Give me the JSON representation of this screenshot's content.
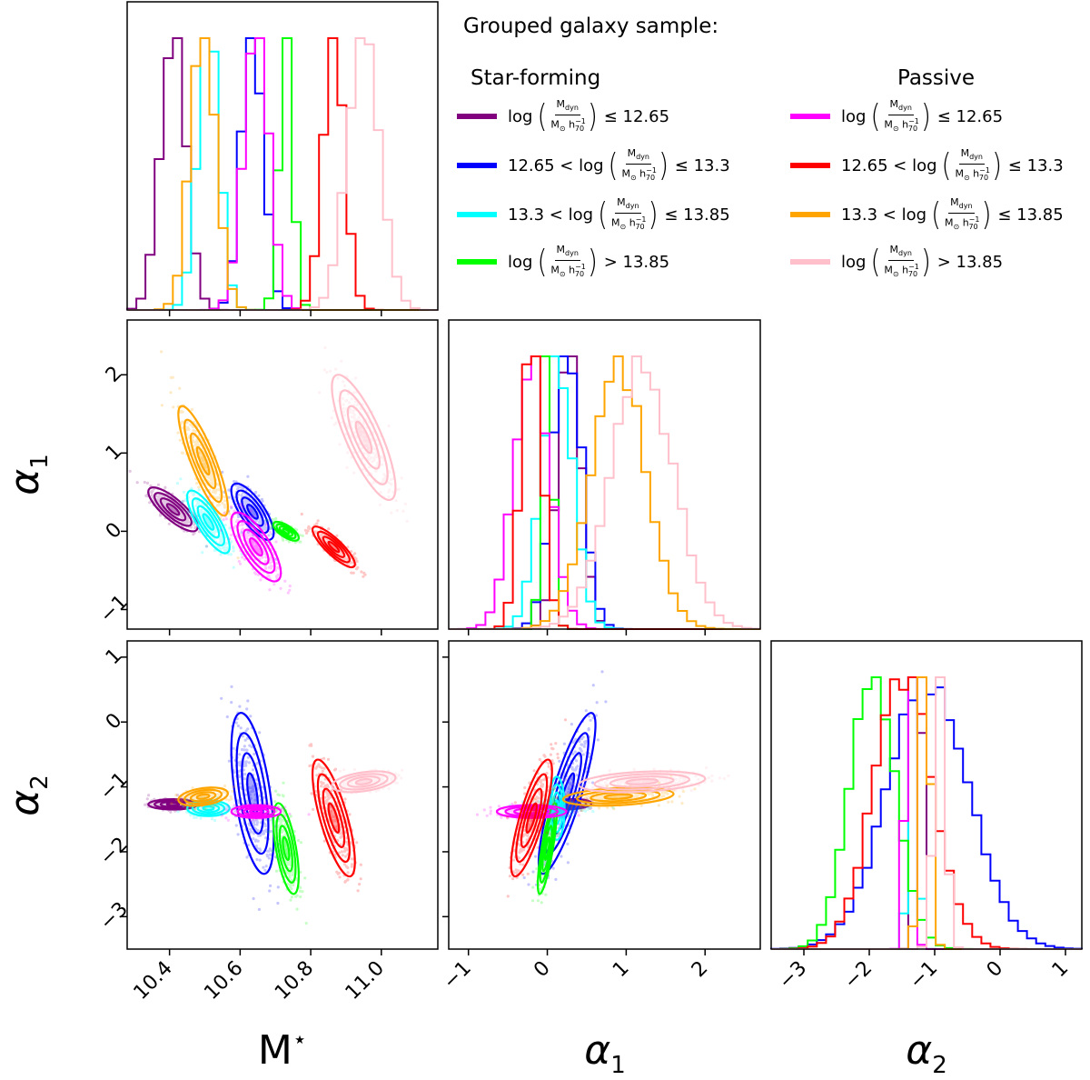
{
  "legend": {
    "title": "Grouped galaxy sample:",
    "col_sf": "Star-forming",
    "col_passive": "Passive",
    "log_text": "log",
    "frac_num": "M",
    "frac_num_sub": "dyn",
    "frac_den": "M",
    "frac_den_sub": "⊙",
    "frac_den_h": "h",
    "frac_den_h_sup": "−1",
    "frac_den_h_sub": "70",
    "sf": [
      {
        "color": "#800080",
        "pre": "",
        "post": "≤ 12.65"
      },
      {
        "color": "#0000ff",
        "pre": "12.65 <",
        "post": "≤ 13.3"
      },
      {
        "color": "#00ffff",
        "pre": "13.3 <",
        "post": "≤ 13.85"
      },
      {
        "color": "#00ff00",
        "pre": "",
        "post": "> 13.85"
      }
    ],
    "passive": [
      {
        "color": "#ff00ff",
        "pre": "",
        "post": "≤ 12.65"
      },
      {
        "color": "#ff0000",
        "pre": "12.65 <",
        "post": "≤ 13.3"
      },
      {
        "color": "#ffa500",
        "pre": "13.3 <",
        "post": "≤ 13.85"
      },
      {
        "color": "#ffc0cb",
        "pre": "",
        "post": "> 13.85"
      }
    ]
  },
  "chart_data": {
    "type": "corner",
    "parameters": [
      "M★",
      "α1",
      "α2"
    ],
    "axis_labels": {
      "mstar": "M",
      "mstar_sup": "⋆",
      "alpha": "α",
      "sub1": "1",
      "sub2": "2"
    },
    "ranges": {
      "mstar": [
        10.28,
        11.16
      ],
      "alpha1": [
        -1.25,
        2.7
      ],
      "alpha2": [
        -3.5,
        1.25
      ]
    },
    "ticks": {
      "mstar": [
        10.4,
        10.6,
        10.8,
        11.0
      ],
      "mstar_labels": [
        "10.4",
        "10.6",
        "10.8",
        "11.0"
      ],
      "alpha1": [
        -1,
        0,
        1,
        2
      ],
      "alpha1_labels": [
        "−1",
        "0",
        "1",
        "2"
      ],
      "alpha2": [
        -3,
        -2,
        -1,
        0,
        1
      ],
      "alpha2_labels": [
        "−3",
        "−2",
        "−1",
        "0",
        "1"
      ]
    },
    "series": [
      {
        "name": "SF log Mdyn ≤ 12.65",
        "color": "#800080",
        "mstar": 10.41,
        "mstar_sd": 0.035,
        "alpha1": 0.28,
        "alpha1_sd": 0.14,
        "alpha2": -1.27,
        "alpha2_sd": 0.04
      },
      {
        "name": "SF 12.65 < log Mdyn ≤ 13.3",
        "color": "#0000ff",
        "mstar": 10.635,
        "mstar_sd": 0.03,
        "alpha1": 0.25,
        "alpha1_sd": 0.18,
        "alpha2": -1.1,
        "alpha2_sd": 0.62
      },
      {
        "name": "SF 13.3 < log Mdyn ≤ 13.85",
        "color": "#00ffff",
        "mstar": 10.51,
        "mstar_sd": 0.03,
        "alpha1": 0.12,
        "alpha1_sd": 0.2,
        "alpha2": -1.33,
        "alpha2_sd": 0.06
      },
      {
        "name": "SF log Mdyn > 13.85",
        "color": "#00ff00",
        "mstar": 10.73,
        "mstar_sd": 0.018,
        "alpha1": 0.0,
        "alpha1_sd": 0.06,
        "alpha2": -1.95,
        "alpha2_sd": 0.35
      },
      {
        "name": "Passive log Mdyn ≤ 12.65",
        "color": "#ff00ff",
        "mstar": 10.645,
        "mstar_sd": 0.035,
        "alpha1": -0.2,
        "alpha1_sd": 0.22,
        "alpha2": -1.38,
        "alpha2_sd": 0.05
      },
      {
        "name": "Passive 12.65 < log Mdyn ≤ 13.3",
        "color": "#ff0000",
        "mstar": 10.865,
        "mstar_sd": 0.03,
        "alpha1": -0.2,
        "alpha1_sd": 0.13,
        "alpha2": -1.48,
        "alpha2_sd": 0.45
      },
      {
        "name": "Passive 13.3 < log Mdyn ≤ 13.85",
        "color": "#ffa500",
        "mstar": 10.495,
        "mstar_sd": 0.035,
        "alpha1": 0.9,
        "alpha1_sd": 0.35,
        "alpha2": -1.15,
        "alpha2_sd": 0.07
      },
      {
        "name": "Passive log Mdyn > 13.85",
        "color": "#ffc0cb",
        "mstar": 10.95,
        "mstar_sd": 0.045,
        "alpha1": 1.2,
        "alpha1_sd": 0.4,
        "alpha2": -0.92,
        "alpha2_sd": 0.08
      }
    ]
  }
}
